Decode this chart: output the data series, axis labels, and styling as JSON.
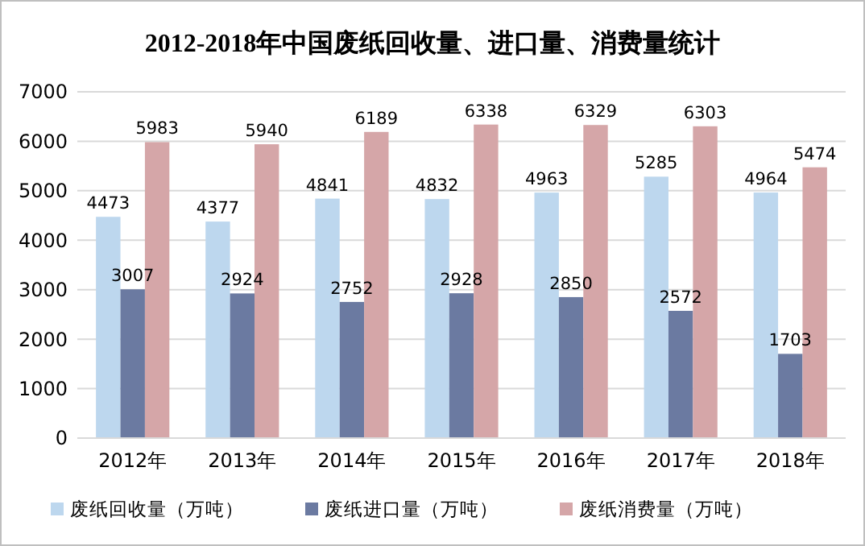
{
  "chart_data": {
    "type": "bar",
    "title": "2012-2018年中国废纸回收量、进口量、消费量统计",
    "categories": [
      "2012年",
      "2013年",
      "2014年",
      "2015年",
      "2016年",
      "2017年",
      "2018年"
    ],
    "series": [
      {
        "name": "废纸回收量（万吨）",
        "color": "#bdd7ee",
        "values": [
          4473,
          4377,
          4841,
          4832,
          4963,
          5285,
          4964
        ]
      },
      {
        "name": "废纸进口量（万吨）",
        "color": "#6b7aa1",
        "values": [
          3007,
          2924,
          2752,
          2928,
          2850,
          2572,
          1703
        ]
      },
      {
        "name": "废纸消费量（万吨）",
        "color": "#d5a6a8",
        "values": [
          5983,
          5940,
          6189,
          6338,
          6329,
          6303,
          5474
        ]
      }
    ],
    "ylim": [
      0,
      7000
    ],
    "yticks": [
      0,
      1000,
      2000,
      3000,
      4000,
      5000,
      6000,
      7000
    ],
    "grid": "y",
    "legend": "bottom",
    "data_labels": true
  }
}
